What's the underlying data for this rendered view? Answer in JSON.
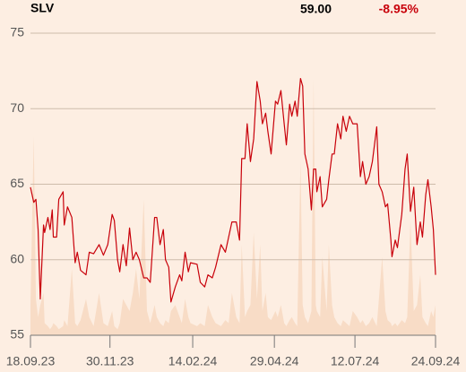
{
  "chart_data": {
    "type": "line",
    "title": "SLV",
    "price": "59.00",
    "change": "-8.95%",
    "x": [
      "2023-09-18",
      "2023-09-21",
      "2023-09-23",
      "2023-09-25",
      "2023-09-27",
      "2023-09-30",
      "2023-10-01",
      "2023-10-04",
      "2023-10-06",
      "2023-10-08",
      "2023-10-09",
      "2023-10-12",
      "2023-10-14",
      "2023-10-18",
      "2023-10-19",
      "2023-10-22",
      "2023-10-26",
      "2023-10-29",
      "2023-10-31",
      "2023-11-03",
      "2023-11-08",
      "2023-11-11",
      "2023-11-15",
      "2023-11-20",
      "2023-11-24",
      "2023-11-28",
      "2023-12-02",
      "2023-12-04",
      "2023-12-07",
      "2023-12-09",
      "2023-12-12",
      "2023-12-15",
      "2023-12-18",
      "2023-12-21",
      "2023-12-24",
      "2023-12-27",
      "2023-12-31",
      "2024-01-03",
      "2024-01-06",
      "2024-01-10",
      "2024-01-12",
      "2024-01-15",
      "2024-01-18",
      "2024-01-20",
      "2024-01-23",
      "2024-01-25",
      "2024-01-29",
      "2024-02-02",
      "2024-02-04",
      "2024-02-07",
      "2024-02-10",
      "2024-02-12",
      "2024-02-18",
      "2024-02-21",
      "2024-02-25",
      "2024-02-28",
      "2024-03-03",
      "2024-03-06",
      "2024-03-11",
      "2024-03-15",
      "2024-03-18",
      "2024-03-21",
      "2024-03-25",
      "2024-03-28",
      "2024-03-30",
      "2024-04-02",
      "2024-04-04",
      "2024-04-07",
      "2024-04-10",
      "2024-04-13",
      "2024-04-16",
      "2024-04-18",
      "2024-04-21",
      "2024-04-23",
      "2024-04-26",
      "2024-04-30",
      "2024-05-02",
      "2024-05-05",
      "2024-05-08",
      "2024-05-10",
      "2024-05-13",
      "2024-05-15",
      "2024-05-18",
      "2024-05-20",
      "2024-05-23",
      "2024-05-25",
      "2024-05-27",
      "2024-05-30",
      "2024-06-02",
      "2024-06-04",
      "2024-06-06",
      "2024-06-07",
      "2024-06-10",
      "2024-06-12",
      "2024-06-16",
      "2024-06-18",
      "2024-06-21",
      "2024-06-23",
      "2024-06-26",
      "2024-06-29",
      "2024-07-01",
      "2024-07-04",
      "2024-07-07",
      "2024-07-10",
      "2024-07-14",
      "2024-07-17",
      "2024-07-19",
      "2024-07-22",
      "2024-07-25",
      "2024-07-28",
      "2024-08-01",
      "2024-08-03",
      "2024-08-06",
      "2024-08-09",
      "2024-08-11",
      "2024-08-14",
      "2024-08-15",
      "2024-08-18",
      "2024-08-20",
      "2024-08-24",
      "2024-08-27",
      "2024-08-29",
      "2024-09-01",
      "2024-09-04",
      "2024-09-07",
      "2024-09-10",
      "2024-09-12",
      "2024-09-15",
      "2024-09-17",
      "2024-09-20",
      "2024-09-22",
      "2024-09-24"
    ],
    "series": [
      {
        "color": "#c8000a",
        "values": [
          64.8,
          63.8,
          64,
          62,
          57.4,
          62.3,
          61.8,
          62.8,
          62,
          63.3,
          61.5,
          61.5,
          64,
          64.5,
          62.3,
          63.5,
          62.8,
          59.8,
          60.5,
          59.3,
          59,
          60.5,
          60.4,
          61,
          60.3,
          61,
          63,
          62.6,
          60,
          59.2,
          61,
          59.6,
          62.1,
          60,
          60.5,
          60,
          58.8,
          58.8,
          58.5,
          62.8,
          62.8,
          61,
          62,
          60,
          59.5,
          57.2,
          58.2,
          59,
          58.6,
          60.5,
          59.2,
          59.8,
          59.7,
          58.5,
          58.2,
          59,
          58.8,
          59.5,
          61,
          60.5,
          61.5,
          62.5,
          62.5,
          61.3,
          66.7,
          66.7,
          69,
          66.5,
          68,
          71.8,
          70.5,
          69,
          69.7,
          68.5,
          67,
          70.5,
          70.3,
          71.2,
          69,
          67.6,
          70.3,
          69.5,
          70.5,
          69.5,
          72,
          71.5,
          67,
          66,
          63.3,
          66,
          66,
          64.5,
          65.5,
          63.5,
          64,
          65.3,
          67,
          67,
          69,
          68,
          69.5,
          68.5,
          69.5,
          69,
          69,
          65.5,
          66.5,
          65,
          65.5,
          66.5,
          68.8,
          65,
          64.5,
          63.5,
          63.7,
          61.3,
          60.2,
          61.3,
          60.8,
          63,
          66,
          67,
          63.2,
          64.8,
          61,
          62.5,
          61.5,
          64.3,
          65.3,
          63.5,
          62,
          59
        ]
      }
    ],
    "volume": {
      "color": "#f8dcc6",
      "axis": "y2",
      "values": [
        10,
        66,
        12,
        6,
        10,
        14,
        4,
        3,
        2,
        3,
        4,
        3,
        2,
        3,
        5,
        3,
        22,
        4,
        3,
        5,
        12,
        6,
        3,
        14,
        4,
        3,
        8,
        3,
        2,
        4,
        12,
        10,
        8,
        14,
        22,
        12,
        45,
        8,
        4,
        10,
        6,
        4,
        3,
        5,
        4,
        8,
        10,
        6,
        4,
        12,
        6,
        4,
        3,
        4,
        3,
        10,
        6,
        4,
        3,
        5,
        4,
        14,
        6,
        4,
        30,
        6,
        8,
        10,
        34,
        12,
        30,
        8,
        14,
        6,
        5,
        8,
        6,
        10,
        4,
        3,
        5,
        6,
        4,
        3,
        58,
        10,
        6,
        4,
        8,
        85,
        10,
        8,
        6,
        26,
        8,
        30,
        10,
        6,
        4,
        3,
        5,
        4,
        3,
        8,
        6,
        4,
        5,
        3,
        4,
        6,
        3,
        12,
        26,
        8,
        5,
        4,
        3,
        4,
        3,
        5,
        4,
        6,
        38,
        8,
        10,
        20,
        6,
        4,
        3,
        8,
        6,
        10
      ]
    },
    "y2lim": [
      0,
      100
    ],
    "xlim": [
      "2023-09-18",
      "2024-09-24"
    ],
    "xticks": [
      {
        "value": "2023-09-18",
        "label": "18.09.23"
      },
      {
        "value": "2023-11-30",
        "label": "30.11.23"
      },
      {
        "value": "2024-02-14",
        "label": "14.02.24"
      },
      {
        "value": "2024-04-29",
        "label": "29.04.24"
      },
      {
        "value": "2024-07-12",
        "label": "12.07.24"
      },
      {
        "value": "2024-09-24",
        "label": "24.09.24"
      }
    ],
    "ylim": [
      55,
      75
    ],
    "yticks": [
      55,
      60,
      65,
      70,
      75
    ],
    "grid": true
  }
}
